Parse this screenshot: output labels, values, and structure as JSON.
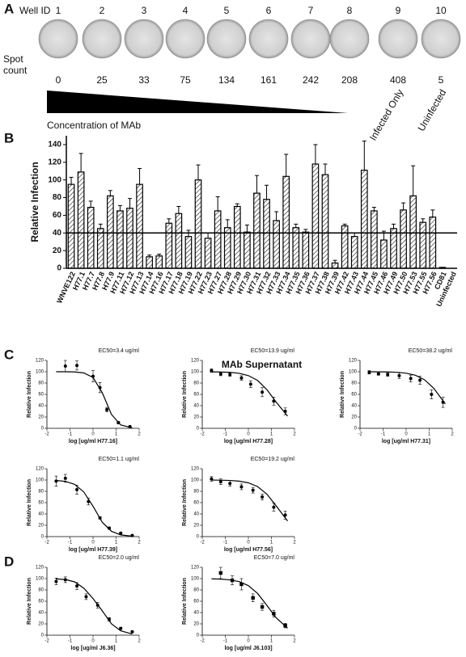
{
  "panel_a": {
    "label": "A",
    "well_id_label": "Well ID",
    "well_ids": [
      1,
      2,
      3,
      4,
      5,
      6,
      7,
      8,
      9,
      10
    ],
    "spot_count_label": "Spot count",
    "spot_counts": [
      0,
      25,
      33,
      75,
      134,
      161,
      242,
      208,
      408,
      5
    ],
    "gradient_label": "Concentration of MAb",
    "control_labels": [
      "Infected Only",
      "Uninfected"
    ]
  },
  "chart_data": [
    {
      "type": "bar",
      "panel": "B",
      "ylabel": "Relative Infection",
      "xlabel": "MAb Supernatant",
      "categories": [
        "WNVE122",
        "H77.1",
        "H77.7",
        "H77.8",
        "H77.9",
        "H77.11",
        "H77.12",
        "H77.13",
        "H77.14",
        "H77.16",
        "H77.17",
        "H77.18",
        "H77.19",
        "H77.22",
        "H77.23",
        "H77.27",
        "H77.28",
        "H77.29",
        "H77.30",
        "H77.31",
        "H77.32",
        "H77.33",
        "H77.34",
        "H77.35",
        "H77.36",
        "H77.37",
        "H77.38",
        "H77.39",
        "H77.42",
        "H77.43",
        "H77.44",
        "H77.45",
        "H77.46",
        "H77.49",
        "H77.50",
        "H77.53",
        "H77.55",
        "H77.56",
        "CD81",
        "Uninfected"
      ],
      "values": [
        95,
        109,
        69,
        45,
        82,
        65,
        68,
        95,
        13,
        14,
        51,
        62,
        36,
        100,
        34,
        65,
        46,
        70,
        41,
        85,
        78,
        54,
        104,
        46,
        41,
        118,
        106,
        6,
        48,
        36,
        111,
        65,
        32,
        45,
        66,
        82,
        52,
        58,
        1,
        0
      ],
      "errors": [
        8,
        21,
        7,
        5,
        6,
        6,
        11,
        18,
        2,
        2,
        5,
        8,
        7,
        17,
        6,
        16,
        9,
        3,
        8,
        20,
        16,
        10,
        25,
        4,
        3,
        22,
        12,
        3,
        2,
        4,
        33,
        4,
        10,
        5,
        8,
        34,
        4,
        8,
        0,
        0
      ],
      "threshold": 40,
      "ylim": [
        0,
        150
      ],
      "yticks": [
        0,
        20,
        40,
        60,
        80,
        100,
        120,
        140
      ],
      "color": "#ffffff"
    },
    {
      "type": "dose",
      "panel": "C",
      "annotation": "EC50=3.4 ug/ml",
      "xlabel": "log [ug/ml H77.16]",
      "ylabel": "Relative  Infection",
      "x": [
        -1.2,
        -0.7,
        0,
        0.3,
        0.6,
        1.1,
        1.6
      ],
      "values": [
        110,
        111,
        92,
        72,
        33,
        10,
        3
      ],
      "errors": [
        10,
        8,
        10,
        9,
        4,
        2,
        1
      ],
      "fit_x": [
        -1.6,
        -1.2,
        -0.8,
        -0.4,
        0,
        0.4,
        0.8,
        1.2,
        1.7
      ],
      "fit_values": [
        100,
        100,
        99.6,
        97.9,
        89.9,
        63,
        24.5,
        5.9,
        0.8
      ],
      "marker": "circle",
      "xlim": [
        -2,
        2
      ],
      "xticks": [
        -2,
        -1,
        0,
        1,
        2
      ],
      "ylim": [
        0,
        120
      ],
      "yticks": [
        0,
        20,
        40,
        60,
        80,
        100,
        120
      ]
    },
    {
      "type": "dose",
      "annotation": "EC50=13.9 ug/ml",
      "xlabel": "log [ug/ml H77.28]",
      "ylabel": "Relative  Infection",
      "x": [
        -1.6,
        -1.2,
        -0.8,
        -0.3,
        0.1,
        0.6,
        1.1,
        1.6
      ],
      "values": [
        102,
        96,
        95,
        89,
        78,
        64,
        48,
        30
      ],
      "errors": [
        3,
        3,
        3,
        4,
        6,
        8,
        7,
        6
      ],
      "fit_x": [
        -1.6,
        -1.2,
        -0.8,
        -0.4,
        0,
        0.4,
        0.8,
        1.2,
        1.7
      ],
      "fit_values": [
        99.8,
        99.5,
        98.9,
        97.2,
        93.2,
        84.6,
        68.6,
        46.6,
        21.6
      ],
      "marker": "circle",
      "xlim": [
        -2,
        2
      ],
      "xticks": [
        -2,
        -1,
        0,
        1,
        2
      ],
      "ylim": [
        0,
        120
      ],
      "yticks": [
        0,
        20,
        40,
        60,
        80,
        100,
        120
      ]
    },
    {
      "type": "dose",
      "annotation": "EC50=38.2 ug/ml",
      "xlabel": "log [ug/ml H77.31]",
      "ylabel": "Relative  Infection",
      "x": [
        -1.6,
        -1.2,
        -0.8,
        -0.3,
        0.2,
        0.6,
        1.1,
        1.6
      ],
      "values": [
        99,
        96,
        95,
        93,
        88,
        85,
        60,
        46
      ],
      "errors": [
        3,
        2,
        3,
        5,
        6,
        7,
        8,
        9
      ],
      "fit_x": [
        -1.6,
        -1.2,
        -0.8,
        -0.4,
        0,
        0.4,
        0.8,
        1.2,
        1.7
      ],
      "fit_values": [
        100,
        99.8,
        99.6,
        99,
        97.4,
        93.8,
        85.8,
        70.6,
        43
      ],
      "marker": "circle",
      "xlim": [
        -2,
        2
      ],
      "xticks": [
        -2,
        -1,
        0,
        1,
        2
      ],
      "ylim": [
        0,
        120
      ],
      "yticks": [
        0,
        20,
        40,
        60,
        80,
        100,
        120
      ]
    },
    {
      "type": "dose",
      "annotation": "EC50=1.1 ug/ml",
      "xlabel": "log [ug/ml H77.39]",
      "ylabel": "Relative  Infection",
      "x": [
        -1.6,
        -1.2,
        -0.7,
        -0.2,
        0.3,
        0.7,
        1.2,
        1.7
      ],
      "values": [
        98,
        103,
        83,
        62,
        33,
        15,
        6,
        2
      ],
      "errors": [
        9,
        7,
        8,
        6,
        2,
        2,
        1,
        1
      ],
      "fit_x": [
        -1.6,
        -1.2,
        -0.8,
        -0.4,
        0,
        0.4,
        0.8,
        1.2,
        1.7
      ],
      "fit_values": [
        99.3,
        97.6,
        92.5,
        78.8,
        53.7,
        25.3,
        9.3,
        3,
        0.7
      ],
      "marker": "circle",
      "xlim": [
        -2,
        2
      ],
      "xticks": [
        -2,
        -1,
        0,
        1,
        2
      ],
      "ylim": [
        0,
        120
      ],
      "yticks": [
        0,
        20,
        40,
        60,
        80,
        100,
        120
      ]
    },
    {
      "type": "dose",
      "annotation": "EC50=19.2 ug/ml",
      "xlabel": "log [ug/ml H77.56]",
      "ylabel": "Relative  Infection",
      "x": [
        -1.6,
        -1.2,
        -0.8,
        -0.3,
        0.2,
        0.6,
        1.1,
        1.6
      ],
      "values": [
        102,
        97,
        94,
        88,
        82,
        70,
        52,
        38
      ],
      "errors": [
        4,
        5,
        5,
        5,
        5,
        5,
        7,
        7
      ],
      "fit_x": [
        -1.6,
        -1.2,
        -0.8,
        -0.4,
        0,
        0.4,
        0.8,
        1.2,
        1.7
      ],
      "fit_values": [
        99.9,
        99.7,
        99.2,
        98,
        95,
        88.4,
        75.1,
        54.6,
        27.5
      ],
      "marker": "circle",
      "xlim": [
        -2,
        2
      ],
      "xticks": [
        -2,
        -1,
        0,
        1,
        2
      ],
      "ylim": [
        0,
        120
      ],
      "yticks": [
        0,
        20,
        40,
        60,
        80,
        100,
        120
      ]
    },
    {
      "type": "dose",
      "panel": "D",
      "annotation": "EC50=2.0 ug/ml",
      "xlabel": "log [ug/ml J6.36]",
      "ylabel": "Relative  Infection",
      "x": [
        -1.6,
        -1.2,
        -0.7,
        -0.3,
        0.2,
        0.7,
        1.2,
        1.7
      ],
      "values": [
        95,
        98,
        87,
        68,
        53,
        28,
        12,
        6
      ],
      "errors": [
        6,
        5,
        6,
        5,
        5,
        3,
        2,
        1
      ],
      "fit_x": [
        -1.6,
        -1.2,
        -0.8,
        -0.4,
        0,
        0.4,
        0.8,
        1.2,
        1.7
      ],
      "fit_values": [
        99.5,
        98.4,
        94.3,
        83.1,
        64.6,
        43,
        20,
        7.7,
        2
      ],
      "marker": "circle",
      "xlim": [
        -2,
        2
      ],
      "xticks": [
        -2,
        -1,
        0,
        1,
        2
      ],
      "ylim": [
        0,
        120
      ],
      "yticks": [
        0,
        20,
        40,
        60,
        80,
        100,
        120
      ]
    },
    {
      "type": "dose",
      "annotation": "EC50=7.0 ug/ml",
      "xlabel": "log [ug/ml J6.103]",
      "ylabel": "Relative  Infection",
      "x": [
        -1.2,
        -0.7,
        -0.3,
        0.2,
        0.6,
        1.1,
        1.6
      ],
      "values": [
        110,
        97,
        90,
        66,
        50,
        38,
        17
      ],
      "errors": [
        10,
        8,
        10,
        7,
        6,
        6,
        4
      ],
      "fit_x": [
        -1.6,
        -1.2,
        -0.8,
        -0.4,
        0,
        0.4,
        0.8,
        1.2,
        1.7
      ],
      "fit_values": [
        99.6,
        99.1,
        97.8,
        94.7,
        87.6,
        73.8,
        52.9,
        30.9,
        12.4
      ],
      "marker": "square",
      "xlim": [
        -2,
        2
      ],
      "xticks": [
        -2,
        -1,
        0,
        1,
        2
      ],
      "ylim": [
        0,
        120
      ],
      "yticks": [
        0,
        20,
        40,
        60,
        80,
        100,
        120
      ]
    }
  ]
}
